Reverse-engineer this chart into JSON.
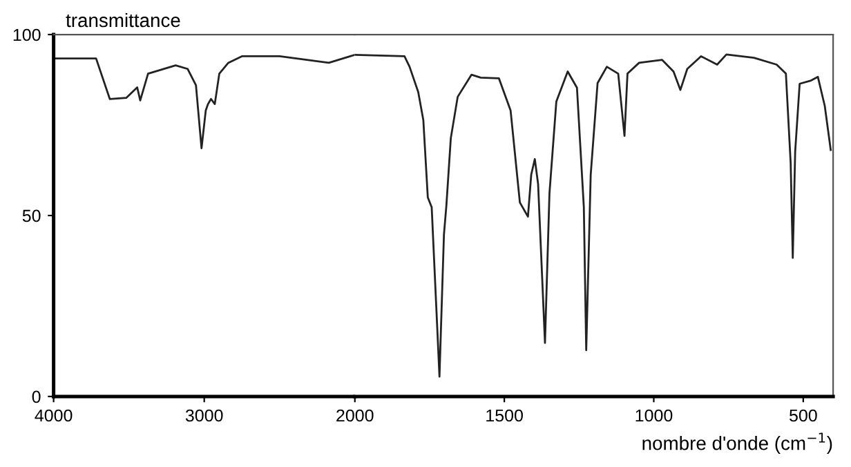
{
  "chart_data": [
    {
      "type": "line",
      "ylabel": "transmittance",
      "xlim": [
        4000,
        2000
      ],
      "xticks": [
        4000,
        3000,
        2000
      ],
      "ylim": [
        0,
        100
      ],
      "yticks": [
        0,
        50,
        100
      ],
      "grid": false,
      "legend": false,
      "marker": "none",
      "line_style": "solid",
      "series": [
        {
          "color": "#222222",
          "x": [
            4000,
            3718,
            3627,
            3518,
            3445,
            3425,
            3373,
            3190,
            3110,
            3055,
            3018,
            2990,
            2975,
            2955,
            2930,
            2900,
            2840,
            2750,
            2500,
            2173,
            2000
          ],
          "values": [
            93.4,
            93.4,
            82.2,
            82.5,
            85.4,
            81.8,
            89.2,
            91.5,
            90.5,
            86,
            68.6,
            79,
            80.8,
            82.2,
            80.8,
            89.2,
            92.2,
            94,
            94,
            92.2,
            94.4
          ]
        }
      ]
    },
    {
      "type": "line",
      "xlabel": "nombre d'onde (cm$^{−1}$)",
      "xlim": [
        2000,
        400
      ],
      "xticks": [
        1500,
        1000,
        500
      ],
      "ylim": [
        0,
        100
      ],
      "tick_labels": "x",
      "grid": false,
      "legend": false,
      "marker": "none",
      "line_style": "solid",
      "series": [
        {
          "color": "#222222",
          "x": [
            2000,
            1834,
            1817,
            1788,
            1771,
            1756,
            1743,
            1725,
            1717,
            1702,
            1694,
            1679,
            1656,
            1610,
            1579,
            1518,
            1479,
            1448,
            1421,
            1410,
            1398,
            1387,
            1364,
            1349,
            1326,
            1288,
            1257,
            1234,
            1226,
            1211,
            1188,
            1157,
            1119,
            1098,
            1088,
            1049,
            972,
            934,
            911,
            888,
            842,
            788,
            757,
            665,
            589,
            558,
            542,
            535,
            527,
            512,
            474,
            451,
            428,
            408
          ],
          "values": [
            94.4,
            94,
            91.1,
            84.1,
            76.4,
            55,
            52.3,
            20,
            5.5,
            44.7,
            52.6,
            71.4,
            82.8,
            88.9,
            88.1,
            87.9,
            79,
            53.6,
            49.7,
            61.3,
            65.6,
            58.7,
            14.8,
            56.1,
            81.5,
            89.8,
            85.3,
            52.3,
            12.8,
            61.3,
            86.6,
            91.1,
            89.2,
            72,
            89.2,
            92.2,
            93,
            89.8,
            84.7,
            90.5,
            94,
            91.7,
            94.5,
            93.6,
            91.7,
            89.2,
            64.4,
            38.3,
            67.6,
            86.4,
            87.3,
            88.3,
            80.3,
            68.1
          ]
        }
      ]
    }
  ]
}
